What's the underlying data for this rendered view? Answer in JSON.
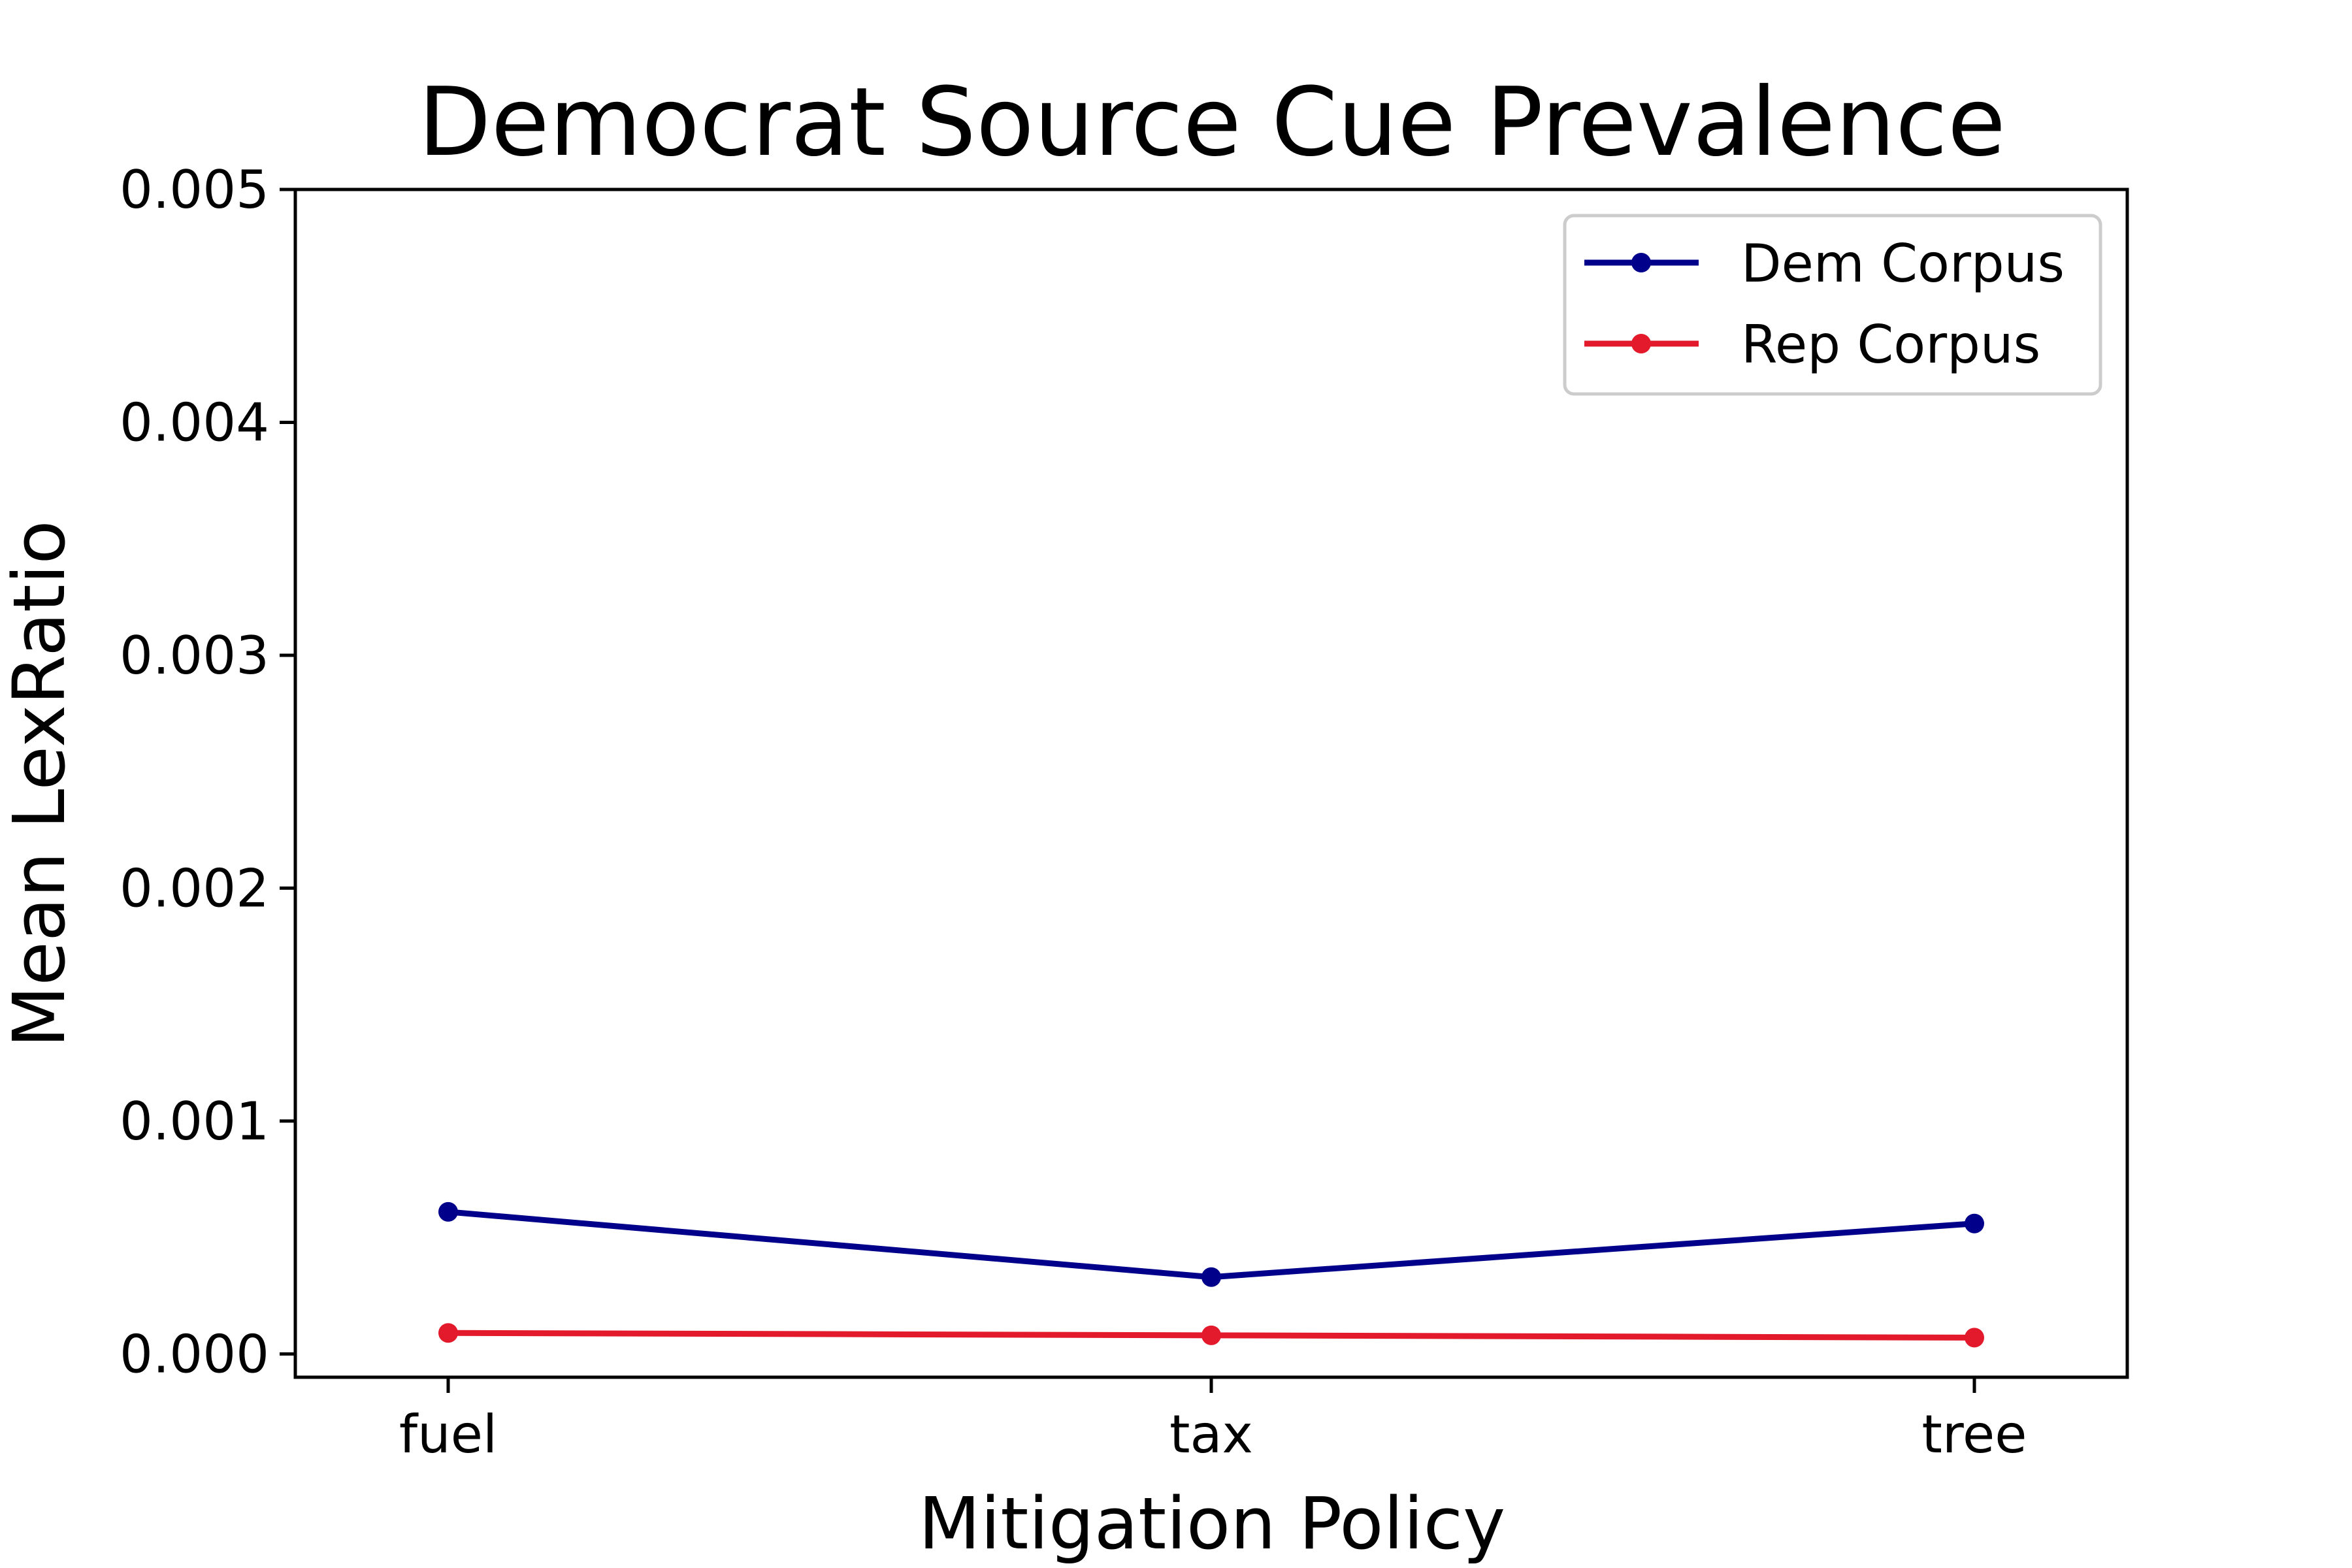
{
  "chart_data": {
    "type": "line",
    "title": "Democrat Source Cue Prevalence",
    "xlabel": "Mitigation Policy",
    "ylabel": "Mean LexRatio",
    "categories": [
      "fuel",
      "tax",
      "tree"
    ],
    "ylim": [
      -0.0001,
      0.005
    ],
    "yticks": [
      0.0,
      0.001,
      0.002,
      0.003,
      0.004,
      0.005
    ],
    "ytick_labels": [
      "0.000",
      "0.001",
      "0.002",
      "0.003",
      "0.004",
      "0.005"
    ],
    "grid": false,
    "legend_position": "top-right",
    "series": [
      {
        "name": "Dem Corpus",
        "color": "#00008b",
        "values": [
          0.00061,
          0.00033,
          0.00056
        ]
      },
      {
        "name": "Rep Corpus",
        "color": "#e31a2b",
        "values": [
          9e-05,
          8e-05,
          7e-05
        ]
      }
    ]
  }
}
